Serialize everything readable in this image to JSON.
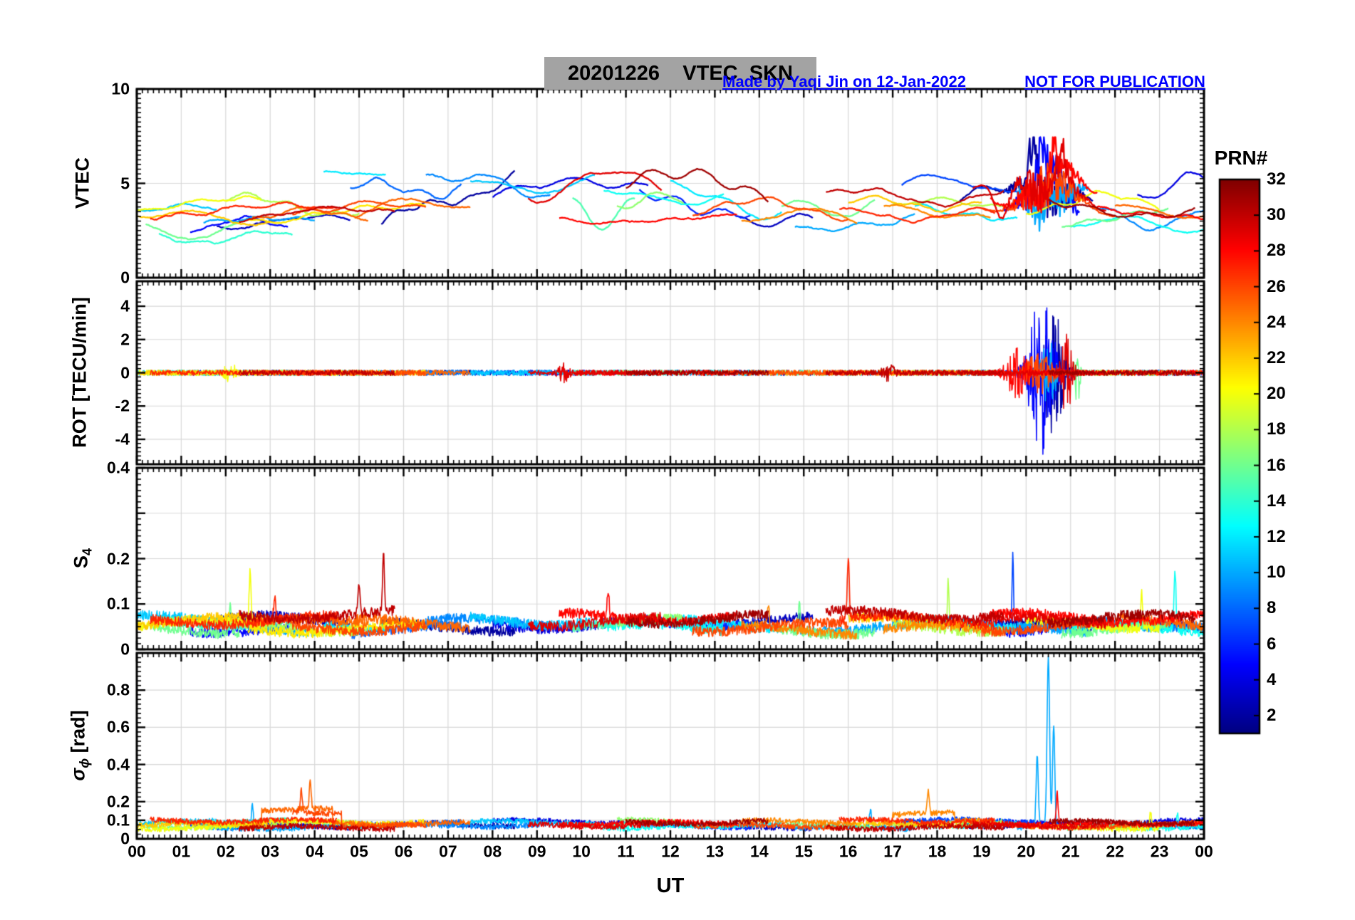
{
  "header": {
    "title": "20201226    VTEC  SKN",
    "made_by": "Made by Yaqi Jin on 12-Jan-2022",
    "not_for_publication": "NOT FOR PUBLICATION"
  },
  "labels": {
    "xlabel": "UT",
    "y1": "VTEC",
    "y2": "ROT [TECU/min]",
    "y3_main": "S",
    "y3_sub": "4",
    "y4_sigma": "σ",
    "y4_sub": "ϕ",
    "y4_rest": " [rad]"
  },
  "colorbar": {
    "label": "PRN#",
    "value_range": [
      1,
      32
    ],
    "tick_values": [
      2,
      4,
      6,
      8,
      10,
      12,
      14,
      16,
      18,
      20,
      22,
      24,
      26,
      28,
      30,
      32
    ],
    "colormap": "jet"
  },
  "colors": {
    "annotation": "#0000ff",
    "title_background": "#a3a3a3",
    "grid": "#d8d8d8",
    "frame": "#000000",
    "background": "#ffffff"
  },
  "chart_data": {
    "type": "line",
    "date": "20201226",
    "station": "SKN",
    "x_unit": "UT hours",
    "x_range": [
      0,
      24
    ],
    "x_tick_labels": [
      "00",
      "01",
      "02",
      "03",
      "04",
      "05",
      "06",
      "07",
      "08",
      "09",
      "10",
      "11",
      "12",
      "13",
      "14",
      "15",
      "16",
      "17",
      "18",
      "19",
      "20",
      "21",
      "22",
      "23",
      "00"
    ],
    "panels": [
      {
        "name": "VTEC",
        "ylim": [
          0,
          10
        ],
        "yticks": [
          {
            "v": 0,
            "label": "0"
          },
          {
            "v": 5,
            "label": "5"
          },
          {
            "v": 10,
            "label": "10"
          }
        ],
        "grid_y": [
          5
        ],
        "y_minor_step": 0.25,
        "line_width": 2.3,
        "arcs": [
          {
            "prn": 20,
            "t0": 0,
            "t1": 2.8,
            "base": 3.7,
            "amp": 0.35
          },
          {
            "prn": 22,
            "t0": 0,
            "t1": 3,
            "base": 3.2,
            "amp": 0.3
          },
          {
            "prn": 16,
            "t0": 0.2,
            "t1": 2.3,
            "base": 2.5,
            "amp": 0.4
          },
          {
            "prn": 14,
            "t0": 0.5,
            "t1": 3.5,
            "base": 2.2,
            "amp": 0.3
          },
          {
            "prn": 27,
            "t0": 0.3,
            "t1": 4.5,
            "base": 3.5,
            "amp": 0.3
          },
          {
            "prn": 11,
            "t0": 0,
            "t1": 1.8,
            "base": 3.8,
            "amp": 0.25
          },
          {
            "prn": 5,
            "t0": 1.2,
            "t1": 3.4,
            "base": 2.8,
            "amp": 0.3
          },
          {
            "prn": 3,
            "t0": 1.8,
            "t1": 4.8,
            "base": 2.9,
            "amp": 0.3
          },
          {
            "prn": 10,
            "t0": 1.5,
            "t1": 4,
            "base": 2.9,
            "amp": 0.3
          },
          {
            "prn": 18,
            "t0": 2,
            "t1": 5,
            "base": 3.8,
            "amp": 0.5
          },
          {
            "prn": 21,
            "t0": 2.5,
            "t1": 6.5,
            "base": 3.4,
            "amp": 0.4
          },
          {
            "prn": 30,
            "t0": 2.3,
            "t1": 5.8,
            "base": 3.4,
            "amp": 0.4
          },
          {
            "prn": 26,
            "t0": 3.5,
            "t1": 6.5,
            "base": 3.6,
            "amp": 0.4
          },
          {
            "prn": 25,
            "t0": 2.6,
            "t1": 5.2,
            "base": 3.4,
            "amp": 0.3
          },
          {
            "prn": 12,
            "t0": 4.2,
            "t1": 5.6,
            "base": 5.5,
            "amp": 0.15
          },
          {
            "prn": 8,
            "t0": 4.8,
            "t1": 7.3,
            "base": 4.4,
            "amp": 0.6,
            "slope": 0.25
          },
          {
            "prn": 25,
            "t0": 4.9,
            "t1": 7.5,
            "base": 3.6,
            "amp": 0.4,
            "slope": 0.2
          },
          {
            "prn": 2,
            "t0": 5.5,
            "t1": 8.5,
            "base": 2.6,
            "amp": 0.5,
            "slope": 1.0
          },
          {
            "prn": 9,
            "t0": 6.5,
            "t1": 9.3,
            "base": 4.6,
            "amp": 0.8
          },
          {
            "prn": 11,
            "t0": 7.5,
            "t1": 10.3,
            "base": 4.9,
            "amp": 0.4
          },
          {
            "prn": 4,
            "t0": 8,
            "t1": 11.5,
            "base": 3.8,
            "amp": 0.7,
            "slope": 0.3
          },
          {
            "prn": 29,
            "t0": 8.8,
            "t1": 11.8,
            "base": 5,
            "amp": 0.8
          },
          {
            "prn": 28,
            "t0": 9.5,
            "t1": 13.5,
            "base": 3.2,
            "amp": 0.25
          },
          {
            "prn": 15,
            "t0": 9.8,
            "t1": 11.2,
            "base": 3.4,
            "amp": 0.7
          },
          {
            "prn": 13,
            "t0": 10.5,
            "t1": 13.2,
            "base": 4.6,
            "amp": 0.6
          },
          {
            "prn": 17,
            "t0": 10.8,
            "t1": 12.3,
            "base": 4.2,
            "amp": 0.5
          },
          {
            "prn": 31,
            "t0": 11,
            "t1": 14.2,
            "base": 4.6,
            "amp": 0.9
          },
          {
            "prn": 6,
            "t0": 11.3,
            "t1": 13.8,
            "base": 4.3,
            "amp": 0.9
          },
          {
            "prn": 12,
            "t0": 12,
            "t1": 14.5,
            "base": 4.2,
            "amp": 0.8
          },
          {
            "prn": 26,
            "t0": 12.5,
            "t1": 16,
            "base": 3.8,
            "amp": 0.5
          },
          {
            "prn": 3,
            "t0": 13.5,
            "t1": 15.2,
            "base": 3,
            "amp": 0.4
          },
          {
            "prn": 24,
            "t0": 13.6,
            "t1": 16.2,
            "base": 3.3,
            "amp": 0.4
          },
          {
            "prn": 16,
            "t0": 14.5,
            "t1": 16.6,
            "base": 3.7,
            "amp": 0.5
          },
          {
            "prn": 10,
            "t0": 14.8,
            "t1": 17.5,
            "base": 3,
            "amp": 0.4
          },
          {
            "prn": 30,
            "t0": 15.5,
            "t1": 19.5,
            "base": 4.3,
            "amp": 0.4
          },
          {
            "prn": 22,
            "t0": 16,
            "t1": 19,
            "base": 3.8,
            "amp": 0.4
          },
          {
            "prn": 27,
            "t0": 15.8,
            "t1": 19.3,
            "base": 3.3,
            "amp": 0.3
          },
          {
            "prn": 7,
            "t0": 17.2,
            "t1": 20.2,
            "base": 4.9,
            "amp": 0.4
          },
          {
            "prn": 18,
            "t0": 17,
            "t1": 19.5,
            "base": 3.6,
            "amp": 0.4
          },
          {
            "prn": 24,
            "t0": 16.8,
            "t1": 19.2,
            "base": 3.6,
            "amp": 0.4
          },
          {
            "prn": 12,
            "t0": 17.5,
            "t1": 19.8,
            "base": 3.4,
            "amp": 0.4
          },
          {
            "prn": 2,
            "t0": 18.5,
            "t1": 21.5,
            "base": 4,
            "amp": 0.8,
            "wild": true,
            "peaks": [
              {
                "t": 20.15,
                "amp": 2,
                "w": 0.15
              }
            ]
          },
          {
            "prn": 29,
            "t0": 18.8,
            "t1": 21.8,
            "base": 4.4,
            "amp": 0.9,
            "wild": true,
            "peaks": [
              {
                "t": 19.45,
                "amp": -2.4,
                "w": 0.25
              },
              {
                "t": 20.8,
                "amp": 2,
                "w": 0.12
              }
            ]
          },
          {
            "prn": 26,
            "t0": 19,
            "t1": 22,
            "base": 4.2,
            "amp": 0.7,
            "wild": true
          },
          {
            "prn": 28,
            "t0": 19.2,
            "t1": 21.6,
            "base": 4.7,
            "amp": 0.8,
            "wild": true,
            "peaks": [
              {
                "t": 20.62,
                "amp": 2.2,
                "w": 0.12
              }
            ]
          },
          {
            "prn": 5,
            "t0": 19.5,
            "t1": 21.2,
            "base": 4.5,
            "amp": 1,
            "wild": true,
            "peaks": [
              {
                "t": 20.35,
                "amp": 2.4,
                "w": 0.1
              }
            ]
          },
          {
            "prn": 10,
            "t0": 19.8,
            "t1": 21.4,
            "base": 4.2,
            "amp": 0.8,
            "wild": true,
            "peaks": [
              {
                "t": 20.5,
                "amp": 1.8,
                "w": 0.1
              }
            ]
          },
          {
            "prn": 16,
            "t0": 20.8,
            "t1": 23.2,
            "base": 3.2,
            "amp": 0.4
          },
          {
            "prn": 20,
            "t0": 20,
            "t1": 23,
            "base": 4,
            "amp": 0.5
          },
          {
            "prn": 31,
            "t0": 20.5,
            "t1": 23.8,
            "base": 3.8,
            "amp": 0.5
          },
          {
            "prn": 13,
            "t0": 21,
            "t1": 24,
            "base": 2.9,
            "amp": 0.35
          },
          {
            "prn": 9,
            "t0": 21.5,
            "t1": 24,
            "base": 3.3,
            "amp": 0.5
          },
          {
            "prn": 25,
            "t0": 22,
            "t1": 24,
            "base": 3.5,
            "amp": 0.35
          },
          {
            "prn": 28,
            "t0": 21.6,
            "t1": 24,
            "base": 3.4,
            "amp": 0.3
          },
          {
            "prn": 4,
            "t0": 22.5,
            "t1": 24,
            "base": 4.2,
            "amp": 0.5,
            "slope": 0.8
          }
        ]
      },
      {
        "name": "ROT",
        "ylim": [
          -5.5,
          5.5
        ],
        "yticks": [
          {
            "v": -4,
            "label": "-4"
          },
          {
            "v": -2,
            "label": "-2"
          },
          {
            "v": 0,
            "label": "0"
          },
          {
            "v": 2,
            "label": "2"
          },
          {
            "v": 4,
            "label": "4"
          }
        ],
        "grid_y": [
          -4,
          -2,
          0,
          2,
          4
        ],
        "y_minor_step": 0.25,
        "line_width": 1.5,
        "baseline_noise_amp": 0.16,
        "events": [
          {
            "prn": 5,
            "t": 20.35,
            "width": 0.3,
            "amp": 4.8
          },
          {
            "prn": 2,
            "t": 20.62,
            "width": 0.25,
            "amp": 4.2
          },
          {
            "prn": 10,
            "t": 20.5,
            "width": 0.18,
            "amp": 2.2
          },
          {
            "prn": 29,
            "t": 20.9,
            "width": 0.15,
            "amp": 2.4
          },
          {
            "prn": 16,
            "t": 21.15,
            "width": 0.06,
            "amp": 2.2
          },
          {
            "prn": 28,
            "t": 19.8,
            "width": 0.25,
            "amp": 1.5
          },
          {
            "prn": 26,
            "t": 20.3,
            "width": 0.3,
            "amp": 1.2
          },
          {
            "prn": 20,
            "t": 2.1,
            "width": 0.15,
            "amp": 0.5
          },
          {
            "prn": 29,
            "t": 9.6,
            "width": 0.12,
            "amp": 0.5
          },
          {
            "prn": 30,
            "t": 16.9,
            "width": 0.15,
            "amp": 0.45
          }
        ]
      },
      {
        "name": "S4",
        "ylim": [
          0,
          0.4
        ],
        "yticks": [
          {
            "v": 0,
            "label": "0"
          },
          {
            "v": 0.1,
            "label": "0.1"
          },
          {
            "v": 0.2,
            "label": "0.2"
          },
          {
            "v": 0.4,
            "label": "0.4"
          }
        ],
        "grid_y": [
          0.1,
          0.2,
          0.3
        ],
        "y_minor_step": 0.0125,
        "line_width": 1.6,
        "spikes": [
          {
            "prn": 16,
            "t": 2.1,
            "amp": 0.06
          },
          {
            "prn": 20,
            "t": 2.55,
            "amp": 0.12
          },
          {
            "prn": 27,
            "t": 3.1,
            "amp": 0.05
          },
          {
            "prn": 30,
            "t": 5.0,
            "amp": 0.07
          },
          {
            "prn": 30,
            "t": 5.55,
            "amp": 0.125
          },
          {
            "prn": 28,
            "t": 10.6,
            "amp": 0.06
          },
          {
            "prn": 24,
            "t": 14.2,
            "amp": 0.05
          },
          {
            "prn": 16,
            "t": 14.9,
            "amp": 0.06
          },
          {
            "prn": 27,
            "t": 16.0,
            "amp": 0.135
          },
          {
            "prn": 18,
            "t": 18.25,
            "amp": 0.105
          },
          {
            "prn": 7,
            "t": 19.7,
            "amp": 0.16,
            "w": 0.025
          },
          {
            "prn": 20,
            "t": 22.6,
            "amp": 0.08
          },
          {
            "prn": 13,
            "t": 23.35,
            "amp": 0.13
          }
        ]
      },
      {
        "name": "sigma_phi",
        "ylim": [
          0,
          1
        ],
        "yticks": [
          {
            "v": 0,
            "label": "0"
          },
          {
            "v": 0.1,
            "label": "0.1"
          },
          {
            "v": 0.2,
            "label": "0.2"
          },
          {
            "v": 0.4,
            "label": "0.4"
          },
          {
            "v": 0.6,
            "label": "0.6"
          },
          {
            "v": 0.8,
            "label": "0.8"
          }
        ],
        "grid_y": [
          0.1,
          0.2,
          0.4,
          0.6,
          0.8
        ],
        "y_minor_step": 0.025,
        "line_width": 1.6,
        "spikes": [
          {
            "prn": 10,
            "t": 2.6,
            "amp": 0.13
          },
          {
            "prn": 26,
            "t": 3.7,
            "amp": 0.12
          },
          {
            "prn": 25,
            "t": 3.9,
            "amp": 0.15
          },
          {
            "prn": 10,
            "t": 16.5,
            "amp": 0.1
          },
          {
            "prn": 24,
            "t": 17.8,
            "amp": 0.12
          },
          {
            "prn": 10,
            "t": 20.25,
            "amp": 0.38,
            "w": 0.035
          },
          {
            "prn": 10,
            "t": 20.5,
            "amp": 0.92,
            "w": 0.04
          },
          {
            "prn": 10,
            "t": 20.62,
            "amp": 0.55,
            "w": 0.035
          },
          {
            "prn": 28,
            "t": 20.7,
            "amp": 0.17
          },
          {
            "prn": 20,
            "t": 22.8,
            "amp": 0.09
          },
          {
            "prn": 13,
            "t": 23.4,
            "amp": 0.08
          }
        ],
        "bands": [
          {
            "prn": 25,
            "t0": 2.8,
            "t1": 4.4,
            "level": 0.14
          },
          {
            "prn": 26,
            "t0": 3.4,
            "t1": 4.6,
            "level": 0.13
          },
          {
            "prn": 24,
            "t0": 17.0,
            "t1": 18.4,
            "level": 0.12
          }
        ]
      }
    ]
  }
}
